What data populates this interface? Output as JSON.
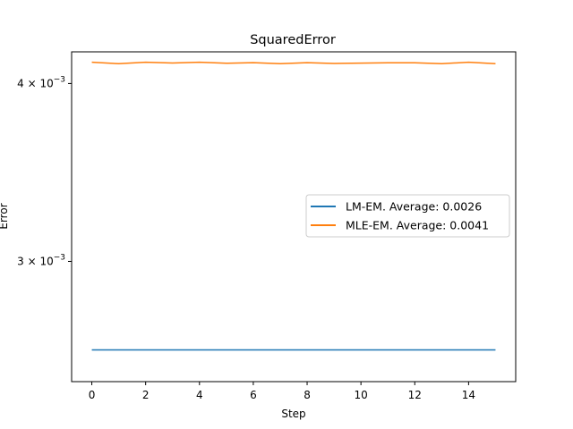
{
  "chart_data": {
    "type": "line",
    "title": "SquaredError",
    "xlabel": "Step",
    "ylabel": "Error",
    "yscale": "log",
    "x": [
      0,
      1,
      2,
      3,
      4,
      5,
      6,
      7,
      8,
      9,
      10,
      11,
      12,
      13,
      14,
      15
    ],
    "xlim": [
      -0.75,
      15.75
    ],
    "ylim": [
      0.00247,
      0.00421
    ],
    "x_ticks": [
      0,
      2,
      4,
      6,
      8,
      10,
      12,
      14
    ],
    "x_tick_labels": [
      "0",
      "2",
      "4",
      "6",
      "8",
      "10",
      "12",
      "14"
    ],
    "y_ticks": [
      0.003,
      0.004
    ],
    "y_tick_labels": [
      {
        "base": "3",
        "exp": "−3"
      },
      {
        "base": "4",
        "exp": "−3"
      }
    ],
    "grid": false,
    "legend_position": "center-right",
    "series": [
      {
        "name": "LM-EM. Average: 0.0026",
        "color": "#1f77b4",
        "values": [
          0.0026,
          0.0026,
          0.0026,
          0.0026,
          0.0026,
          0.0026,
          0.0026,
          0.0026,
          0.0026,
          0.0026,
          0.0026,
          0.0026,
          0.0026,
          0.0026,
          0.0026,
          0.0026
        ]
      },
      {
        "name": "MLE-EM. Average: 0.0041",
        "color": "#ff7f0e",
        "values": [
          0.00414,
          0.00413,
          0.00414,
          0.004135,
          0.00414,
          0.004133,
          0.004137,
          0.00413,
          0.004137,
          0.004132,
          0.004134,
          0.004136,
          0.004136,
          0.00413,
          0.00414,
          0.00413
        ]
      }
    ]
  }
}
